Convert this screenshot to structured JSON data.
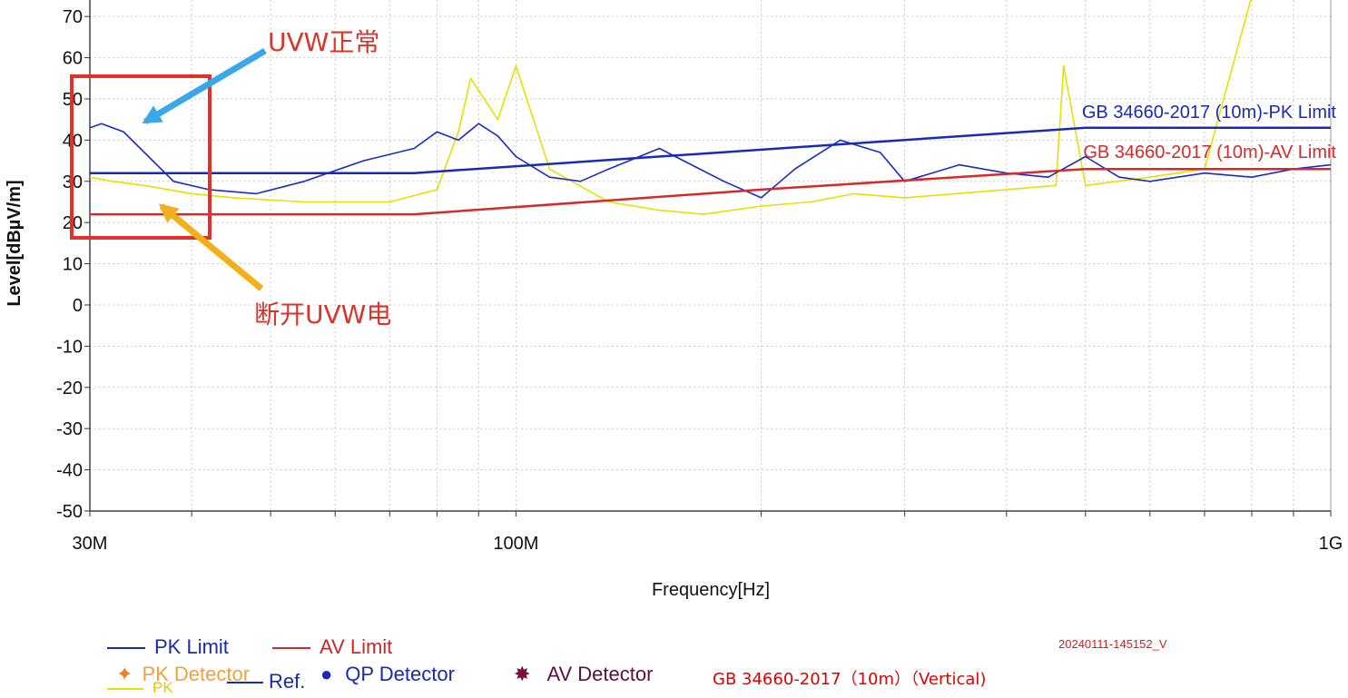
{
  "chart_data": {
    "type": "line",
    "title": "",
    "xlabel": "Frequency[Hz]",
    "ylabel": "Level[dBµV/m]",
    "x_scale": "log",
    "xlim_hz": [
      30000000,
      1000000000
    ],
    "ylim": [
      -50,
      74
    ],
    "yticks": [
      70,
      60,
      50,
      40,
      30,
      20,
      10,
      0,
      -10,
      -20,
      -30,
      -40,
      -50
    ],
    "xtick_labels": [
      {
        "hz": 30000000,
        "label": "30M"
      },
      {
        "hz": 100000000,
        "label": "100M"
      },
      {
        "hz": 1000000000,
        "label": "1G"
      }
    ],
    "grid": true,
    "series": [
      {
        "name": "GB 34660-2017 (10m)-PK Limit",
        "color": "#1a2ab8",
        "x_mhz": [
          30,
          75,
          500,
          1000
        ],
        "values": [
          32,
          32,
          43,
          43
        ]
      },
      {
        "name": "GB 34660-2017 (10m)-AV Limit",
        "color": "#d62a2a",
        "x_mhz": [
          30,
          75,
          200,
          500,
          1000
        ],
        "values": [
          22,
          22,
          28,
          33,
          33
        ]
      },
      {
        "name": "PK",
        "color": "#1a2ac8",
        "x_mhz": [
          30,
          31,
          33,
          35,
          38,
          42,
          48,
          55,
          65,
          75,
          80,
          85,
          90,
          95,
          100,
          110,
          120,
          130,
          150,
          180,
          200,
          220,
          250,
          280,
          300,
          350,
          400,
          450,
          500,
          550,
          600,
          700,
          800,
          900,
          1000
        ],
        "values": [
          43,
          44,
          42,
          37,
          30,
          28,
          27,
          30,
          35,
          38,
          42,
          40,
          44,
          41,
          36,
          31,
          30,
          33,
          38,
          30,
          26,
          33,
          40,
          37,
          30,
          34,
          32,
          31,
          36,
          31,
          30,
          32,
          31,
          33,
          34
        ]
      },
      {
        "name": "Ref.",
        "color": "#e8e000",
        "x_mhz": [
          30,
          32,
          35,
          40,
          45,
          55,
          70,
          80,
          85,
          88,
          95,
          100,
          110,
          130,
          150,
          170,
          200,
          230,
          260,
          300,
          400,
          460,
          470,
          500,
          600,
          700,
          800,
          900,
          1000
        ],
        "values": [
          31,
          30,
          29,
          27,
          26,
          25,
          25,
          28,
          42,
          55,
          45,
          58,
          33,
          25,
          23,
          22,
          24,
          25,
          27,
          26,
          28,
          29,
          58,
          29,
          31,
          33,
          75,
          78,
          80
        ]
      }
    ]
  },
  "limit_labels": {
    "pk": "GB 34660-2017 (10m)-PK Limit",
    "av": "GB 34660-2017 (10m)-AV Limit"
  },
  "annotations": {
    "uvw_on": "UVW正常",
    "uvw_off": "断开UVW电"
  },
  "legend": {
    "pk_limit": "PK Limit",
    "av_limit": "AV Limit",
    "pk_detector": "PK Detector",
    "pk": "PK",
    "ref": "Ref.",
    "qp_detector": "QP Detector",
    "av_detector": "AV Detector"
  },
  "colors": {
    "pk_limit": "#1a2ab8",
    "av_limit": "#d62a2a",
    "pk_trace": "#1a2ac8",
    "ref_trace": "#e8e000",
    "annotation": "#d9352b",
    "box": "#e0322a"
  },
  "meta": {
    "timestamp": "20240111-145152_V",
    "standard": "GB 34660-2017（10m）（Vertical)"
  }
}
